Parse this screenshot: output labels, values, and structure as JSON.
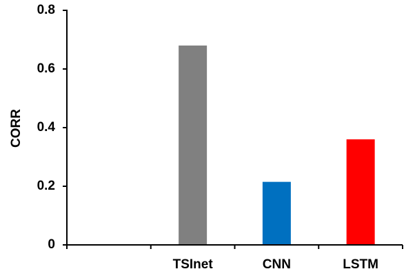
{
  "chart_data": {
    "type": "bar",
    "title": "",
    "xlabel": "",
    "ylabel": "CORR",
    "ylim": [
      0,
      0.8
    ],
    "yticks": [
      "0",
      "0.2",
      "0.4",
      "0.6",
      "0.8"
    ],
    "categories": [
      "TSInet",
      "CNN",
      "LSTM"
    ],
    "values": [
      0.68,
      0.215,
      0.36
    ],
    "colors": [
      "#808080",
      "#0070C0",
      "#FF0000"
    ],
    "grid": false,
    "legend": "none"
  }
}
